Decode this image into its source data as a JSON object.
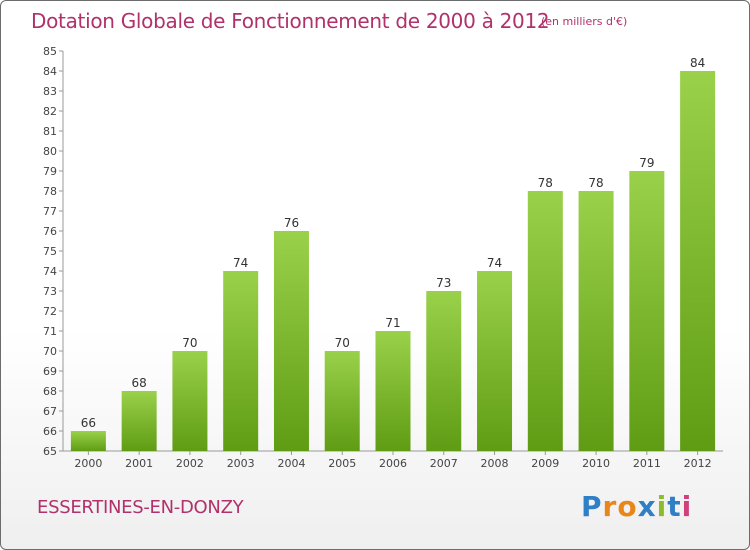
{
  "title": "Dotation Globale de Fonctionnement de 2000 à 2012",
  "subtitle": "(en milliers d'€)",
  "commune": "ESSERTINES-EN-DONZY",
  "brand": {
    "letters": [
      "P",
      "r",
      "o",
      "x",
      "i",
      "t",
      "i"
    ],
    "colors": [
      "#2e7fc6",
      "#e8861a",
      "#e8861a",
      "#2e7fc6",
      "#8bbd2b",
      "#2e7fc6",
      "#d1407a"
    ]
  },
  "colors": {
    "title": "#b0316b",
    "bar_light": "#9ad14a",
    "bar_dark": "#5f9c14"
  },
  "chart_data": {
    "type": "bar",
    "categories": [
      "2000",
      "2001",
      "2002",
      "2003",
      "2004",
      "2005",
      "2006",
      "2007",
      "2008",
      "2009",
      "2010",
      "2011",
      "2012"
    ],
    "values": [
      66,
      68,
      70,
      74,
      76,
      70,
      71,
      73,
      74,
      78,
      78,
      79,
      84
    ],
    "ylim": [
      65,
      85
    ],
    "yticks": [
      65,
      66,
      67,
      68,
      69,
      70,
      71,
      72,
      73,
      74,
      75,
      76,
      77,
      78,
      79,
      80,
      81,
      82,
      83,
      84,
      85
    ],
    "grid": false
  }
}
